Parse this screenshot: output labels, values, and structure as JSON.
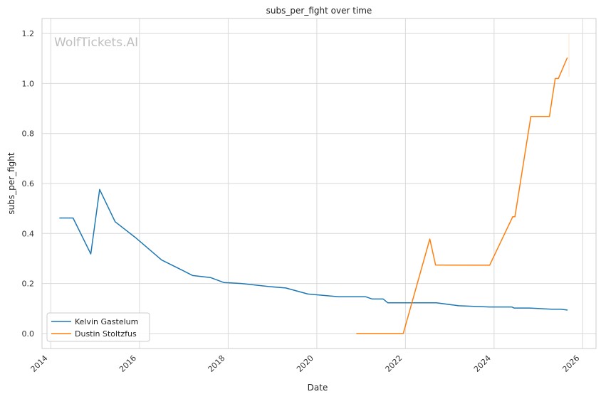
{
  "watermark": "WolfTickets.AI",
  "chart_data": {
    "type": "line",
    "title": "subs_per_fight over time",
    "xlabel": "Date",
    "ylabel": "subs_per_fight",
    "xlim": [
      2013.8,
      2026.3
    ],
    "ylim": [
      -0.06,
      1.26
    ],
    "xticks": [
      2014,
      2016,
      2018,
      2020,
      2022,
      2024,
      2026
    ],
    "xtick_labels": [
      "2014",
      "2016",
      "2018",
      "2020",
      "2022",
      "2024",
      "2026"
    ],
    "yticks": [
      0.0,
      0.2,
      0.4,
      0.6,
      0.8,
      1.0,
      1.2
    ],
    "ytick_labels": [
      "0.0",
      "0.2",
      "0.4",
      "0.6",
      "0.8",
      "1.0",
      "1.2"
    ],
    "grid": true,
    "legend_position": "bottom-left",
    "series": [
      {
        "name": "Kelvin Gastelum",
        "color": "#1f77b4",
        "x": [
          2014.2,
          2014.5,
          2014.9,
          2015.1,
          2015.45,
          2015.9,
          2016.5,
          2016.9,
          2017.2,
          2017.6,
          2017.9,
          2018.3,
          2018.9,
          2019.3,
          2019.8,
          2020.5,
          2021.1,
          2021.25,
          2021.5,
          2021.6,
          2022.0,
          2022.7,
          2023.2,
          2023.9,
          2024.4,
          2024.45,
          2024.8,
          2025.3,
          2025.5,
          2025.65
        ],
        "y": [
          0.462,
          0.462,
          0.318,
          0.576,
          0.447,
          0.385,
          0.294,
          0.259,
          0.232,
          0.224,
          0.204,
          0.2,
          0.188,
          0.182,
          0.158,
          0.147,
          0.147,
          0.138,
          0.138,
          0.123,
          0.123,
          0.123,
          0.111,
          0.106,
          0.106,
          0.102,
          0.102,
          0.097,
          0.097,
          0.094
        ]
      },
      {
        "name": "Dustin Stoltzfus",
        "color": "#ff7f0e",
        "x": [
          2020.9,
          2021.95,
          2022.55,
          2022.68,
          2023.9,
          2024.42,
          2024.47,
          2024.83,
          2025.25,
          2025.38,
          2025.45,
          2025.65
        ],
        "y": [
          0.0,
          0.0,
          0.378,
          0.274,
          0.273,
          0.467,
          0.467,
          0.868,
          0.868,
          1.02,
          1.02,
          1.102
        ]
      }
    ]
  }
}
